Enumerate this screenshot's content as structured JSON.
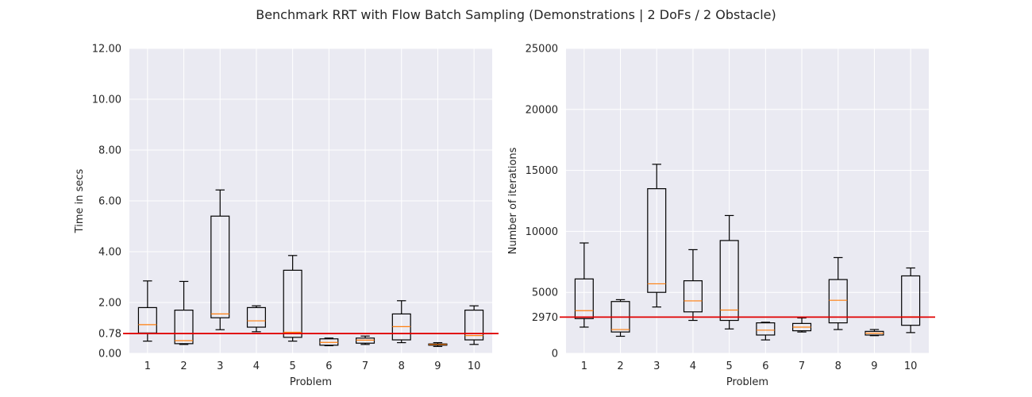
{
  "figure": {
    "suptitle": "Benchmark RRT with Flow Batch Sampling (Demonstrations | 2 DoFs / 2 Obstacle)"
  },
  "colors": {
    "plot_background": "#eaeaf2",
    "grid": "#ffffff",
    "box": "#000000",
    "median": "#ff7f0e",
    "reference_line": "#e00000"
  },
  "chart_data": [
    {
      "type": "box",
      "title": "",
      "xlabel": "Problem",
      "ylabel": "Time in secs",
      "ylim": [
        0,
        12
      ],
      "yticks": [
        0.0,
        0.78,
        2.0,
        4.0,
        6.0,
        8.0,
        10.0,
        12.0
      ],
      "ytick_labels": [
        "0.00",
        "0.78",
        "2.00",
        "4.00",
        "6.00",
        "8.00",
        "10.00",
        "12.00"
      ],
      "categories": [
        "1",
        "2",
        "3",
        "4",
        "5",
        "6",
        "7",
        "8",
        "9",
        "10"
      ],
      "grid": true,
      "reference_line": 0.78,
      "boxes": [
        {
          "whislo": 0.48,
          "q1": 0.8,
          "med": 1.13,
          "q3": 1.8,
          "whishi": 2.85
        },
        {
          "whislo": 0.35,
          "q1": 0.38,
          "med": 0.5,
          "q3": 1.7,
          "whishi": 2.83
        },
        {
          "whislo": 0.93,
          "q1": 1.4,
          "med": 1.55,
          "q3": 5.4,
          "whishi": 6.43
        },
        {
          "whislo": 0.85,
          "q1": 1.03,
          "med": 1.28,
          "q3": 1.8,
          "whishi": 1.87
        },
        {
          "whislo": 0.48,
          "q1": 0.63,
          "med": 0.83,
          "q3": 3.27,
          "whishi": 3.85
        },
        {
          "whislo": 0.3,
          "q1": 0.32,
          "med": 0.43,
          "q3": 0.57,
          "whishi": 0.6
        },
        {
          "whislo": 0.35,
          "q1": 0.4,
          "med": 0.52,
          "q3": 0.6,
          "whishi": 0.68
        },
        {
          "whislo": 0.42,
          "q1": 0.53,
          "med": 1.05,
          "q3": 1.55,
          "whishi": 2.07
        },
        {
          "whislo": 0.27,
          "q1": 0.32,
          "med": 0.35,
          "q3": 0.37,
          "whishi": 0.42
        },
        {
          "whislo": 0.35,
          "q1": 0.53,
          "med": 0.7,
          "q3": 1.7,
          "whishi": 1.87
        }
      ]
    },
    {
      "type": "box",
      "title": "",
      "xlabel": "Problem",
      "ylabel": "Number of iterations",
      "ylim": [
        0,
        25000
      ],
      "yticks": [
        0,
        2970,
        5000,
        10000,
        15000,
        20000,
        25000
      ],
      "ytick_labels": [
        "0",
        "2970",
        "5000",
        "10000",
        "15000",
        "20000",
        "25000"
      ],
      "categories": [
        "1",
        "2",
        "3",
        "4",
        "5",
        "6",
        "7",
        "8",
        "9",
        "10"
      ],
      "grid": true,
      "reference_line": 2970,
      "boxes": [
        {
          "whislo": 2150,
          "q1": 2850,
          "med": 3500,
          "q3": 6100,
          "whishi": 9050
        },
        {
          "whislo": 1400,
          "q1": 1750,
          "med": 1950,
          "q3": 4250,
          "whishi": 4400
        },
        {
          "whislo": 3800,
          "q1": 5000,
          "med": 5700,
          "q3": 13500,
          "whishi": 15500
        },
        {
          "whislo": 2700,
          "q1": 3400,
          "med": 4300,
          "q3": 5950,
          "whishi": 8500
        },
        {
          "whislo": 2000,
          "q1": 2700,
          "med": 3550,
          "q3": 9250,
          "whishi": 11300
        },
        {
          "whislo": 1100,
          "q1": 1500,
          "med": 1900,
          "q3": 2500,
          "whishi": 2550
        },
        {
          "whislo": 1750,
          "q1": 1850,
          "med": 2150,
          "q3": 2450,
          "whishi": 2900
        },
        {
          "whislo": 1950,
          "q1": 2500,
          "med": 4350,
          "q3": 6050,
          "whishi": 7850
        },
        {
          "whislo": 1450,
          "q1": 1500,
          "med": 1650,
          "q3": 1800,
          "whishi": 1950
        },
        {
          "whislo": 1700,
          "q1": 2300,
          "med": 3000,
          "q3": 6350,
          "whishi": 7000
        }
      ]
    }
  ]
}
